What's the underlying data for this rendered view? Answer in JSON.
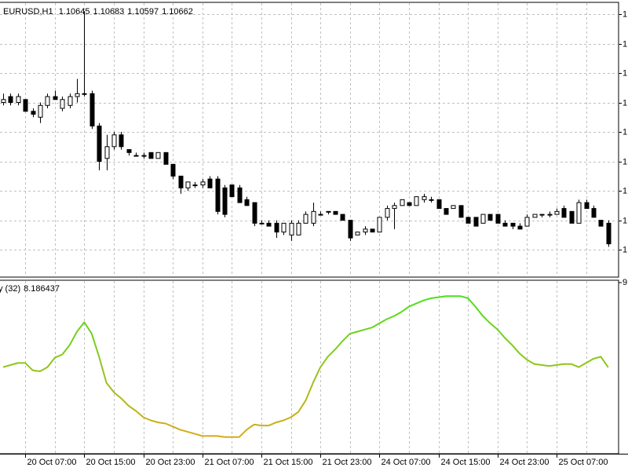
{
  "chart_data": [
    {
      "type": "candlestick",
      "title": "EURUSD,H1",
      "header_values": [
        1.10645,
        1.10683,
        1.10597,
        1.10662
      ],
      "categories": [
        null,
        null,
        null,
        "20 Oct 07:00",
        null,
        null,
        null,
        null,
        null,
        null,
        null,
        "20 Oct 15:00",
        null,
        null,
        null,
        null,
        null,
        null,
        null,
        "20 Oct 23:00",
        null,
        null,
        null,
        null,
        null,
        null,
        null,
        "21 Oct 07:00",
        null,
        null,
        null,
        null,
        null,
        null,
        null,
        "21 Oct 15:00",
        null,
        null,
        null,
        null,
        null,
        null,
        null,
        "21 Oct 23:00",
        null,
        null,
        null,
        null,
        null,
        null,
        null,
        "24 Oct 07:00",
        null,
        null,
        null,
        null,
        null,
        null,
        null,
        "24 Oct 15:00",
        null,
        null,
        null,
        null,
        null,
        null,
        null,
        "24 Oct 23:00",
        null,
        null,
        null,
        null,
        null,
        null,
        null,
        "25 Oct 07:00",
        null,
        null,
        null,
        null,
        null,
        null,
        null
      ],
      "open": [
        1.111,
        1.1112,
        1.111,
        1.1111,
        1.1107,
        1.1105,
        1.1109,
        1.1112,
        1.1108,
        1.1109,
        1.1112,
        1.1113,
        1.1113,
        1.1102,
        1.1091,
        1.1095,
        1.1099,
        1.1094,
        1.1092,
        1.1092,
        1.1093,
        1.1091,
        1.1093,
        1.1089,
        1.1085,
        1.1081,
        1.1082,
        1.1082,
        1.1084,
        1.1084,
        1.1081,
        1.1082,
        1.1081,
        1.1077,
        1.1076,
        1.1069,
        1.1069,
        1.1069,
        1.1066,
        1.1065,
        1.1065,
        1.1069,
        1.1069,
        1.1072,
        1.1073,
        1.1073,
        1.1072,
        1.107,
        1.1065,
        1.1066,
        1.1067,
        1.1066,
        1.1071,
        1.1074,
        1.1075,
        1.1076,
        1.1075,
        1.1077,
        1.1077,
        1.1077,
        1.1074,
        1.1074,
        1.1075,
        1.1071,
        1.1071,
        1.1069,
        1.1072,
        1.1072,
        1.1069,
        1.1069,
        1.1068,
        1.1068,
        1.1071,
        1.1072,
        1.1072,
        1.1072,
        1.1074,
        1.1073,
        1.1069,
        1.1076,
        1.1074,
        1.107,
        1.1069
      ],
      "high": [
        1.1113,
        1.1113,
        1.1113,
        1.1111,
        1.1108,
        1.111,
        1.1113,
        1.1114,
        1.1112,
        1.1113,
        1.1118,
        1.1141,
        1.1114,
        1.1103,
        1.1099,
        1.11,
        1.11,
        1.1094,
        1.1093,
        1.1093,
        1.1093,
        1.1093,
        1.1093,
        1.1089,
        1.1085,
        1.1083,
        1.1083,
        1.1084,
        1.1085,
        1.1085,
        1.1082,
        1.1082,
        1.1082,
        1.1078,
        1.1076,
        1.107,
        1.107,
        1.107,
        1.1069,
        1.107,
        1.107,
        1.1073,
        1.1076,
        1.1073,
        1.1073,
        1.1073,
        1.1072,
        1.107,
        1.1066,
        1.1068,
        1.1067,
        1.1071,
        1.1075,
        1.1076,
        1.1077,
        1.1076,
        1.1078,
        1.1079,
        1.1078,
        1.1077,
        1.1074,
        1.1075,
        1.1075,
        1.1071,
        1.1071,
        1.1072,
        1.1072,
        1.1072,
        1.107,
        1.1069,
        1.1069,
        1.1072,
        1.1072,
        1.1072,
        1.1073,
        1.1074,
        1.1075,
        1.1073,
        1.1077,
        1.1077,
        1.1075,
        1.107,
        1.107
      ],
      "low": [
        1.1109,
        1.1109,
        1.1109,
        1.1107,
        1.1105,
        1.1103,
        1.1108,
        1.1111,
        1.1107,
        1.1108,
        1.111,
        1.1112,
        1.1101,
        1.1087,
        1.1087,
        1.1094,
        1.1094,
        1.1092,
        1.1092,
        1.1091,
        1.1091,
        1.1091,
        1.1089,
        1.1084,
        1.1079,
        1.108,
        1.1081,
        1.1081,
        1.1081,
        1.1072,
        1.1071,
        1.1078,
        1.1076,
        1.1075,
        1.1068,
        1.1069,
        1.1068,
        1.1064,
        1.1065,
        1.1063,
        1.1065,
        1.1069,
        1.1068,
        1.1072,
        1.1072,
        1.1072,
        1.107,
        1.1063,
        1.1065,
        1.1065,
        1.1066,
        1.1066,
        1.107,
        1.1067,
        1.1075,
        1.1075,
        1.1075,
        1.1076,
        1.1076,
        1.1074,
        1.1072,
        1.1074,
        1.1071,
        1.1069,
        1.1068,
        1.1069,
        1.107,
        1.1069,
        1.1068,
        1.1067,
        1.1067,
        1.1068,
        1.1071,
        1.1071,
        1.1071,
        1.1072,
        1.1071,
        1.1069,
        1.1069,
        1.1074,
        1.1071,
        1.1068,
        1.1061
      ],
      "close": [
        1.1111,
        1.111,
        1.1112,
        1.1107,
        1.1106,
        1.1109,
        1.1112,
        1.1111,
        1.1111,
        1.1112,
        1.1113,
        1.1113,
        1.1102,
        1.109,
        1.1095,
        1.1099,
        1.1095,
        1.1093,
        1.1092,
        1.1092,
        1.1091,
        1.1093,
        1.1089,
        1.1085,
        1.1081,
        1.1083,
        1.1082,
        1.1083,
        1.1081,
        1.1073,
        1.1072,
        1.1078,
        1.1076,
        1.1075,
        1.1069,
        1.1069,
        1.1068,
        1.1066,
        1.1069,
        1.1069,
        1.1069,
        1.1072,
        1.1073,
        1.1072,
        1.1073,
        1.1072,
        1.107,
        1.1064,
        1.1066,
        1.1067,
        1.1066,
        1.1071,
        1.1074,
        1.1075,
        1.1077,
        1.1075,
        1.1078,
        1.1078,
        1.1077,
        1.1074,
        1.1072,
        1.1075,
        1.1071,
        1.1069,
        1.1068,
        1.1072,
        1.107,
        1.1069,
        1.1068,
        1.1068,
        1.1067,
        1.1071,
        1.1072,
        1.1072,
        1.1072,
        1.1073,
        1.1071,
        1.1069,
        1.1076,
        1.1074,
        1.1071,
        1.1068,
        1.1062
      ],
      "up_color": "#ffffff",
      "down_color": "#000000",
      "wick_color": "#000000",
      "ylim": [
        1.10507,
        1.1144
      ],
      "yticks": [
        {
          "value": 1.106,
          "label": "1"
        },
        {
          "value": 1.107,
          "label": "1"
        },
        {
          "value": 1.108,
          "label": "1"
        },
        {
          "value": 1.109,
          "label": "1"
        },
        {
          "value": 1.11,
          "label": "1"
        },
        {
          "value": 1.111,
          "label": "1"
        },
        {
          "value": 1.112,
          "label": "1"
        },
        {
          "value": 1.113,
          "label": "1"
        },
        {
          "value": 1.114,
          "label": "1"
        }
      ],
      "grid": true
    },
    {
      "type": "line",
      "title": "y (32)",
      "current_value": 8.186437,
      "values": [
        8.19,
        8.21,
        8.23,
        8.23,
        8.16,
        8.15,
        8.19,
        8.28,
        8.31,
        8.4,
        8.53,
        8.62,
        8.51,
        8.29,
        8.04,
        7.95,
        7.89,
        7.82,
        7.77,
        7.71,
        7.68,
        7.66,
        7.65,
        7.62,
        7.59,
        7.57,
        7.55,
        7.53,
        7.53,
        7.53,
        7.52,
        7.52,
        7.52,
        7.59,
        7.64,
        7.63,
        7.63,
        7.66,
        7.68,
        7.71,
        7.76,
        7.87,
        8.04,
        8.19,
        8.29,
        8.36,
        8.44,
        8.51,
        8.53,
        8.55,
        8.57,
        8.61,
        8.65,
        8.68,
        8.72,
        8.77,
        8.8,
        8.83,
        8.85,
        8.86,
        8.87,
        8.87,
        8.87,
        8.85,
        8.77,
        8.68,
        8.61,
        8.55,
        8.47,
        8.4,
        8.32,
        8.26,
        8.22,
        8.21,
        8.2,
        8.21,
        8.22,
        8.22,
        8.19,
        8.23,
        8.27,
        8.29,
        8.186437
      ],
      "color_high": "#3ce61e",
      "color_low": "#e8a317",
      "ylim": [
        7.36,
        9.0
      ],
      "yticks": [
        {
          "value": 9,
          "label": "9"
        }
      ],
      "grid": true
    }
  ]
}
